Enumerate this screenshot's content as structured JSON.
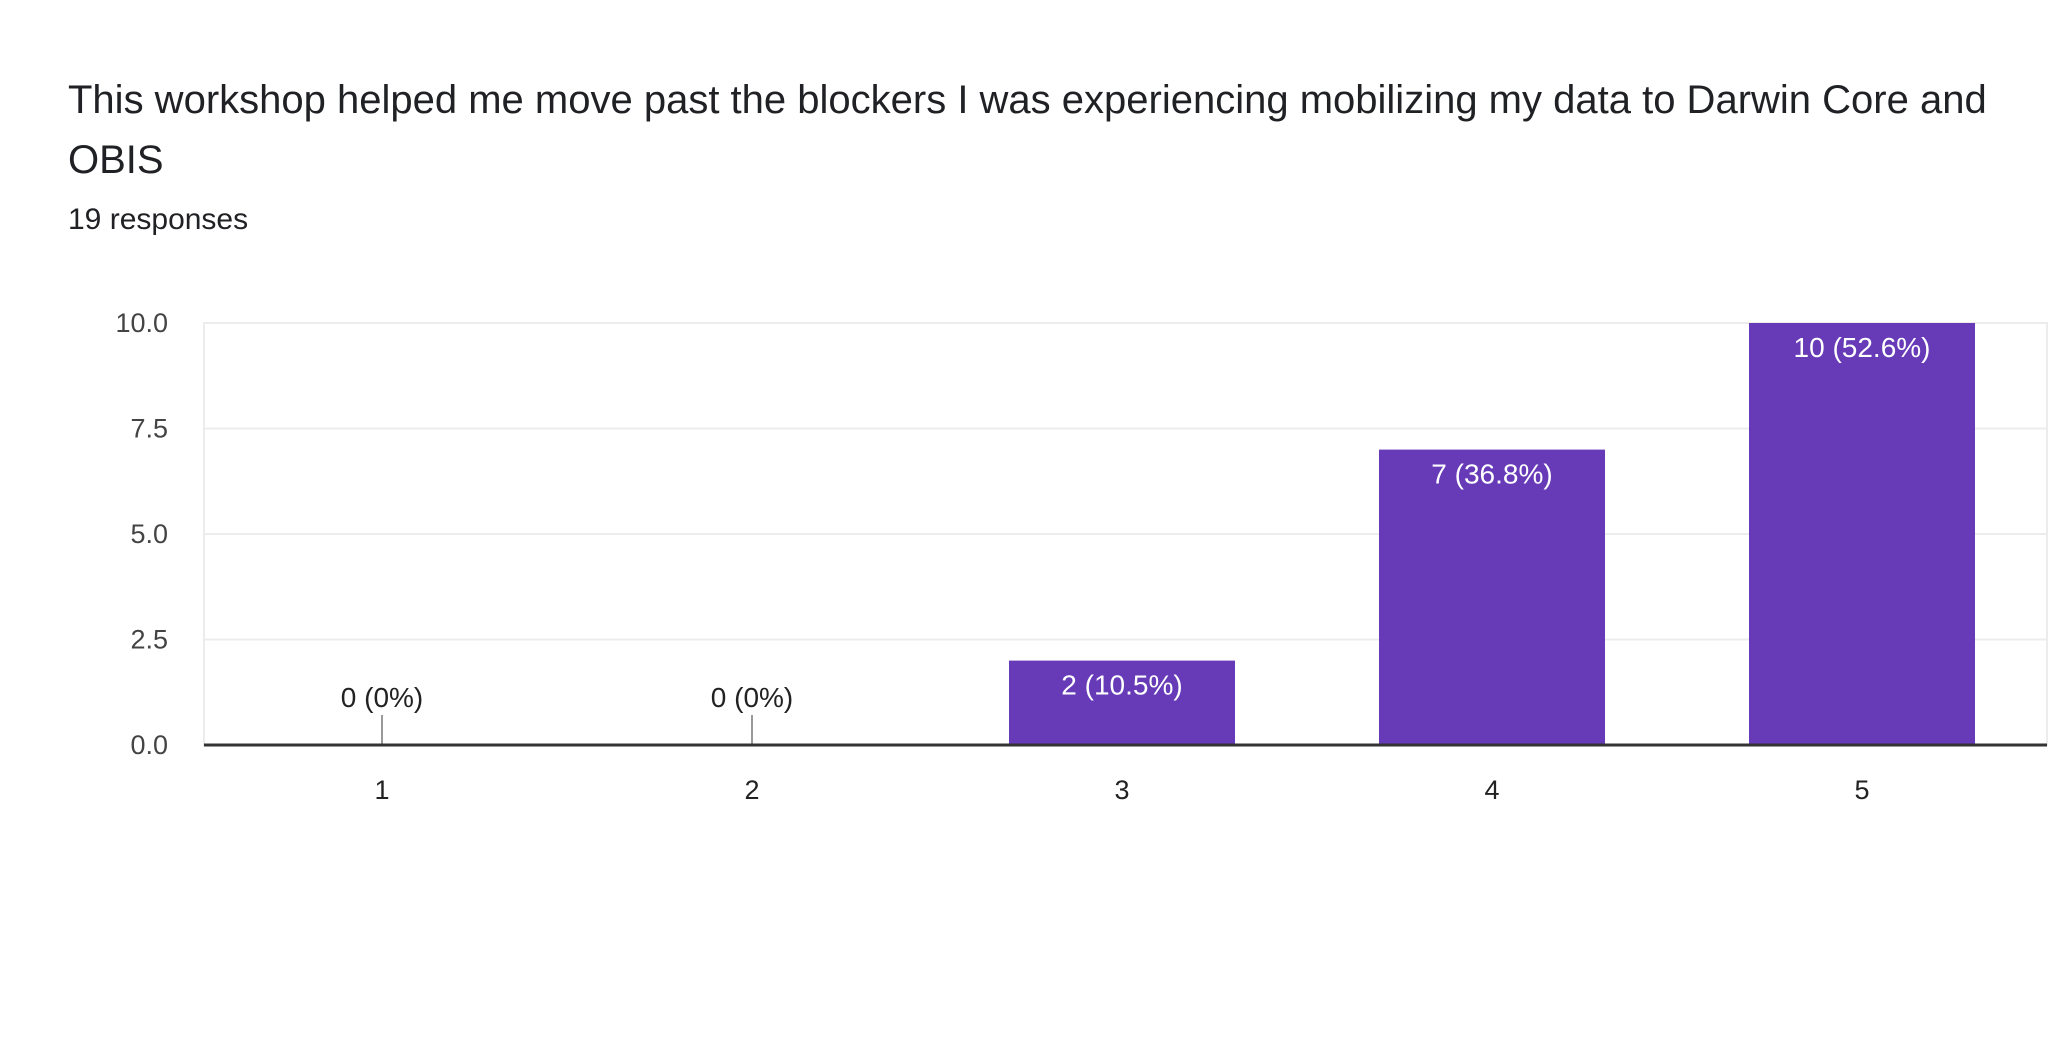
{
  "chart_data": {
    "type": "bar",
    "title": "This workshop helped me move past the blockers I was experiencing mobilizing my data to Darwin Core and OBIS",
    "subtitle": "19 responses",
    "categories": [
      "1",
      "2",
      "3",
      "4",
      "5"
    ],
    "values": [
      0,
      0,
      2,
      7,
      10
    ],
    "data_labels": [
      "0 (0%)",
      "0 (0%)",
      "2 (10.5%)",
      "7 (36.8%)",
      "10 (52.6%)"
    ],
    "yticks": [
      "0.0",
      "2.5",
      "5.0",
      "7.5",
      "10.0"
    ],
    "ylim": [
      0,
      10
    ],
    "xlabel": "",
    "ylabel": "",
    "grid": true,
    "bar_color": "#673ab7"
  }
}
